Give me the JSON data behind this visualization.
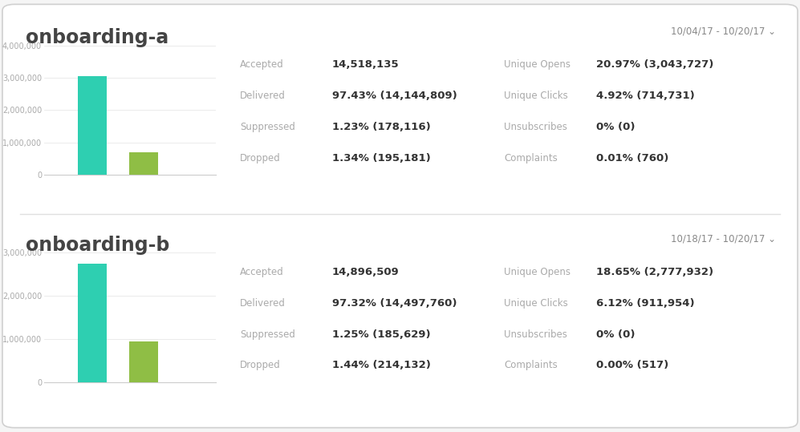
{
  "background_color": "#f5f5f5",
  "card_color": "#ffffff",
  "border_color": "#d0d0d0",
  "sections": [
    {
      "title": "onboarding-a",
      "date_range": "10/04/17 - 10/20/17 ⌄",
      "bar1_value": 3050000,
      "bar2_value": 700000,
      "bar1_color": "#2ecfb1",
      "bar2_color": "#8fbe45",
      "ymax": 4000000,
      "yticks": [
        0,
        1000000,
        2000000,
        3000000,
        4000000
      ],
      "ytick_labels": [
        "0",
        "1,000,000",
        "2,000,000",
        "3,000,000",
        "4,000,000"
      ],
      "stats_left": [
        {
          "label": "Accepted",
          "value": "14,518,135"
        },
        {
          "label": "Delivered",
          "value": "97.43% (14,144,809)"
        },
        {
          "label": "Suppressed",
          "value": "1.23% (178,116)"
        },
        {
          "label": "Dropped",
          "value": "1.34% (195,181)"
        }
      ],
      "stats_right": [
        {
          "label": "Unique Opens",
          "value": "20.97% (3,043,727)"
        },
        {
          "label": "Unique Clicks",
          "value": "4.92% (714,731)"
        },
        {
          "label": "Unsubscribes",
          "value": "0% (0)"
        },
        {
          "label": "Complaints",
          "value": "0.01% (760)"
        }
      ]
    },
    {
      "title": "onboarding-b",
      "date_range": "10/18/17 - 10/20/17 ⌄",
      "bar1_value": 2750000,
      "bar2_value": 950000,
      "bar1_color": "#2ecfb1",
      "bar2_color": "#8fbe45",
      "ymax": 3000000,
      "yticks": [
        0,
        1000000,
        2000000,
        3000000
      ],
      "ytick_labels": [
        "0",
        "1,000,000",
        "2,000,000",
        "3,000,000"
      ],
      "stats_left": [
        {
          "label": "Accepted",
          "value": "14,896,509"
        },
        {
          "label": "Delivered",
          "value": "97.32% (14,497,760)"
        },
        {
          "label": "Suppressed",
          "value": "1.25% (185,629)"
        },
        {
          "label": "Dropped",
          "value": "1.44% (214,132)"
        }
      ],
      "stats_right": [
        {
          "label": "Unique Opens",
          "value": "18.65% (2,777,932)"
        },
        {
          "label": "Unique Clicks",
          "value": "6.12% (911,954)"
        },
        {
          "label": "Unsubscribes",
          "value": "0% (0)"
        },
        {
          "label": "Complaints",
          "value": "0.00% (517)"
        }
      ]
    }
  ],
  "title_fontsize": 17,
  "date_fontsize": 8.5,
  "label_fontsize": 8.5,
  "value_fontsize": 9.5,
  "ytick_fontsize": 7
}
